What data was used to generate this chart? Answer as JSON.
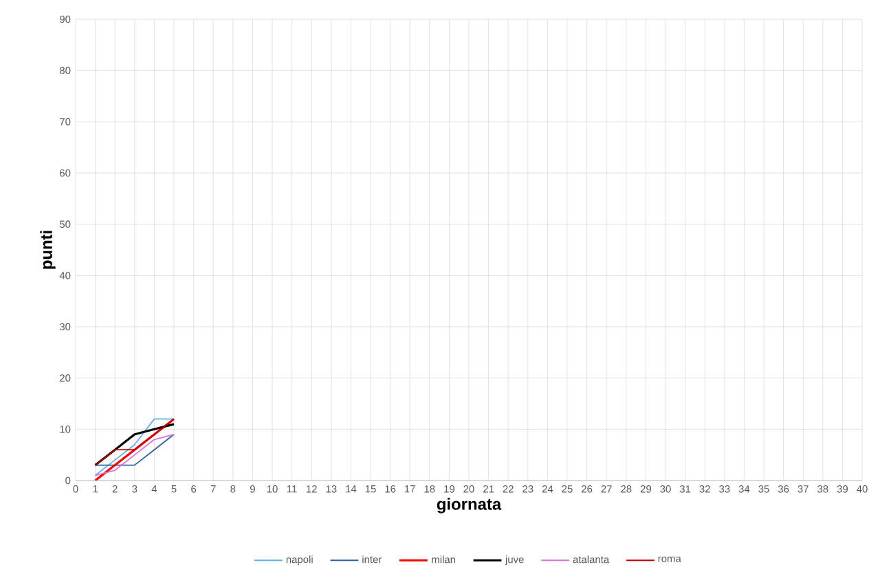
{
  "chart_data": {
    "type": "line",
    "xlabel": "giornata",
    "ylabel": "punti",
    "x": [
      1,
      2,
      3,
      4,
      5
    ],
    "xlim": [
      0,
      40
    ],
    "xticks": [
      0,
      1,
      2,
      3,
      4,
      5,
      6,
      7,
      8,
      9,
      10,
      11,
      12,
      13,
      14,
      15,
      16,
      17,
      18,
      19,
      20,
      21,
      22,
      23,
      24,
      25,
      26,
      27,
      28,
      29,
      30,
      31,
      32,
      33,
      34,
      35,
      36,
      37,
      38,
      39,
      40
    ],
    "ylim": [
      0,
      90
    ],
    "yticks": [
      0,
      10,
      20,
      30,
      40,
      50,
      60,
      70,
      80,
      90
    ],
    "grid": true,
    "legend": "bottom",
    "marker": "none",
    "line_style": "solid",
    "series": [
      {
        "name": "napoli",
        "color": "#5bb4e5",
        "values": [
          1,
          4,
          7,
          12,
          12
        ]
      },
      {
        "name": "inter",
        "color": "#2e5fa0",
        "values": [
          3,
          3,
          3,
          6,
          9
        ]
      },
      {
        "name": "milan",
        "color": "#ff0000",
        "values": [
          0,
          3,
          6,
          9,
          12
        ]
      },
      {
        "name": "juve",
        "color": "#000000",
        "values": [
          3,
          6,
          9,
          10,
          11
        ]
      },
      {
        "name": "atalanta",
        "color": "#e070dc",
        "values": [
          1,
          2,
          5,
          8,
          9
        ]
      },
      {
        "name": "roma",
        "color": "#c00000",
        "values": [
          3,
          6,
          6,
          9,
          12
        ]
      }
    ]
  }
}
